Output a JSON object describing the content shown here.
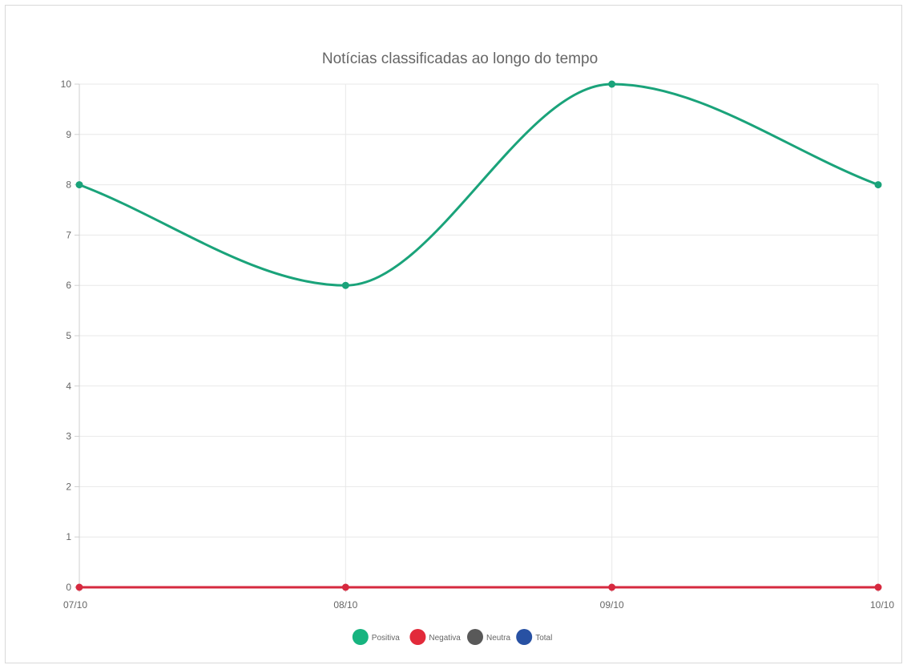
{
  "chart_data": {
    "type": "line",
    "title": "Notícias classificadas ao longo do tempo",
    "xlabel": "",
    "ylabel": "",
    "categories": [
      "07/10",
      "08/10",
      "09/10",
      "10/10"
    ],
    "ylim": [
      0,
      10
    ],
    "yticks": [
      0,
      1,
      2,
      3,
      4,
      5,
      6,
      7,
      8,
      9,
      10
    ],
    "grid": true,
    "legend_position": "bottom",
    "series": [
      {
        "name": "Positiva",
        "values": [
          8,
          6,
          10,
          8
        ],
        "color": "#1aa37a",
        "legend_color": "#17b47f",
        "smooth": true
      },
      {
        "name": "Negativa",
        "values": [
          0,
          0,
          0,
          0
        ],
        "color": "#d6293f",
        "legend_color": "#e22a3a",
        "smooth": true
      },
      {
        "name": "Neutra",
        "values": null,
        "color": "#595959",
        "legend_color": "#595959"
      },
      {
        "name": "Total",
        "values": null,
        "color": "#2851a3",
        "legend_color": "#2851a3"
      }
    ]
  }
}
